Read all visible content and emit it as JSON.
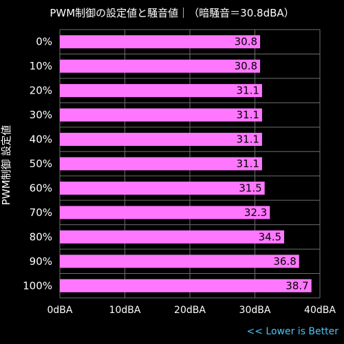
{
  "chart_data": {
    "type": "bar",
    "orientation": "horizontal",
    "title": "PWM制御の設定値と騒音値｜（暗騒音＝30.8dBA）",
    "ylabel": "PWM制御 設定値",
    "xlabel": "",
    "categories": [
      "0%",
      "10%",
      "20%",
      "30%",
      "40%",
      "50%",
      "60%",
      "70%",
      "80%",
      "90%",
      "100%"
    ],
    "values": [
      30.8,
      30.8,
      31.1,
      31.1,
      31.1,
      31.1,
      31.5,
      32.3,
      34.5,
      36.8,
      38.7
    ],
    "value_labels": [
      "30.8",
      "30.8",
      "31.1",
      "31.1",
      "31.1",
      "31.1",
      "31.5",
      "32.3",
      "34.5",
      "36.8",
      "38.7"
    ],
    "xlim": [
      0,
      40
    ],
    "x_ticks": [
      0,
      10,
      20,
      30,
      40
    ],
    "x_tick_labels": [
      "0dBA",
      "10dBA",
      "20dBA",
      "30dBA",
      "40dBA"
    ],
    "grid": true,
    "legend": "none",
    "colors": {
      "bar": "#ff77ff",
      "background": "#000000",
      "grid": "#6f6f6f",
      "text": "#ffffff",
      "value_text": "#000000",
      "note": "#4fc3f7"
    },
    "note": "<< Lower is Better"
  }
}
